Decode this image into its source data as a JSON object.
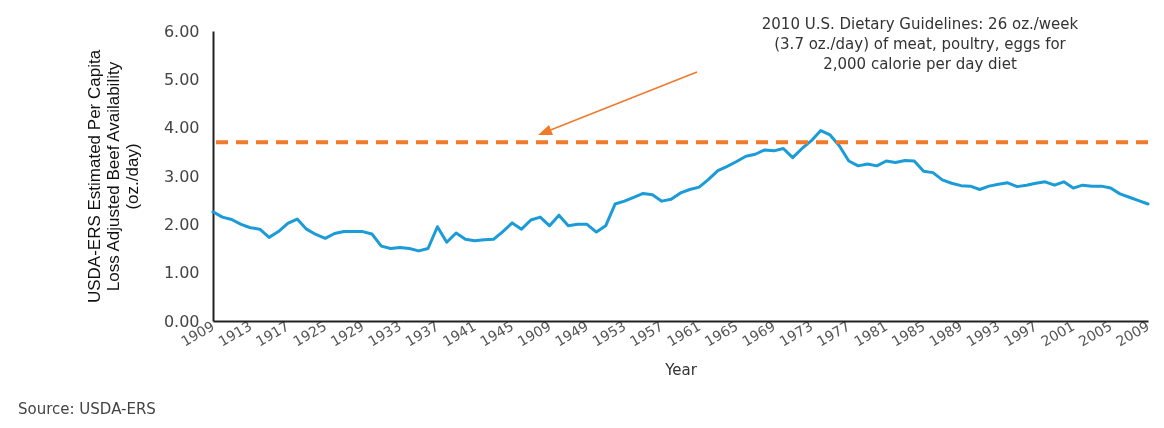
{
  "chart_data": {
    "type": "line",
    "xlabel": "Year",
    "ylabel": "USDA-ERS Estimated Per Capita Loss Adjusted Beef Availability (oz./day)",
    "categories": [
      "1909",
      null,
      null,
      null,
      "1913",
      null,
      null,
      null,
      "1917",
      null,
      null,
      null,
      "1925",
      null,
      null,
      null,
      "1929",
      null,
      null,
      null,
      "1933",
      null,
      null,
      null,
      "1937",
      null,
      null,
      null,
      "1941",
      null,
      null,
      null,
      "1945",
      null,
      null,
      null,
      "1909",
      null,
      null,
      null,
      "1949",
      null,
      null,
      null,
      "1953",
      null,
      null,
      null,
      "1957",
      null,
      null,
      null,
      "1961",
      null,
      null,
      null,
      "1965",
      null,
      null,
      null,
      "1969",
      null,
      null,
      null,
      "1973",
      null,
      null,
      null,
      "1977",
      null,
      null,
      null,
      "1981",
      null,
      null,
      null,
      "1985",
      null,
      null,
      null,
      "1989",
      null,
      null,
      null,
      "1993",
      null,
      null,
      null,
      "1997",
      null,
      null,
      null,
      "2001",
      null,
      null,
      null,
      "2005",
      null,
      null,
      null,
      "2009"
    ],
    "values": [
      2.26,
      2.15,
      2.1,
      2.0,
      1.93,
      1.9,
      1.73,
      1.85,
      2.02,
      2.11,
      1.9,
      1.79,
      1.71,
      1.81,
      1.85,
      1.85,
      1.85,
      1.8,
      1.55,
      1.5,
      1.52,
      1.5,
      1.45,
      1.5,
      1.95,
      1.63,
      1.82,
      1.69,
      1.66,
      1.68,
      1.69,
      1.85,
      2.03,
      1.9,
      2.09,
      2.15,
      1.97,
      2.19,
      1.97,
      2.0,
      2.0,
      1.84,
      1.97,
      2.42,
      2.48,
      2.56,
      2.64,
      2.61,
      2.48,
      2.52,
      2.65,
      2.72,
      2.77,
      2.93,
      3.11,
      3.2,
      3.3,
      3.41,
      3.45,
      3.54,
      3.52,
      3.57,
      3.38,
      3.57,
      3.73,
      3.94,
      3.85,
      3.62,
      3.31,
      3.21,
      3.25,
      3.21,
      3.31,
      3.28,
      3.32,
      3.31,
      3.1,
      3.07,
      2.92,
      2.85,
      2.8,
      2.79,
      2.72,
      2.79,
      2.83,
      2.86,
      2.78,
      2.81,
      2.85,
      2.88,
      2.81,
      2.88,
      2.75,
      2.81,
      2.79,
      2.79,
      2.75,
      2.63,
      2.56,
      2.49,
      2.42
    ],
    "color": "#1b9bd7",
    "ylim": [
      0,
      6
    ],
    "yticks": [
      {
        "value": 0,
        "label": "0.00"
      },
      {
        "value": 1,
        "label": "1.00"
      },
      {
        "value": 2,
        "label": "2.00"
      },
      {
        "value": 3,
        "label": "3.00"
      },
      {
        "value": 4,
        "label": "4.00"
      },
      {
        "value": 5,
        "label": "5.00"
      },
      {
        "value": 6,
        "label": "6.00"
      }
    ],
    "ref_lines": [
      {
        "axis": "y",
        "value": 3.7,
        "color": "#f07a2a",
        "line_style": "dashed"
      }
    ],
    "annotations": [
      "2010 U.S. Dietary Guidelines: 26 oz./week (3.7 oz./day) of meat, poultry, eggs for 2,000 calorie per day diet",
      "Source: USDA-ERS"
    ]
  }
}
